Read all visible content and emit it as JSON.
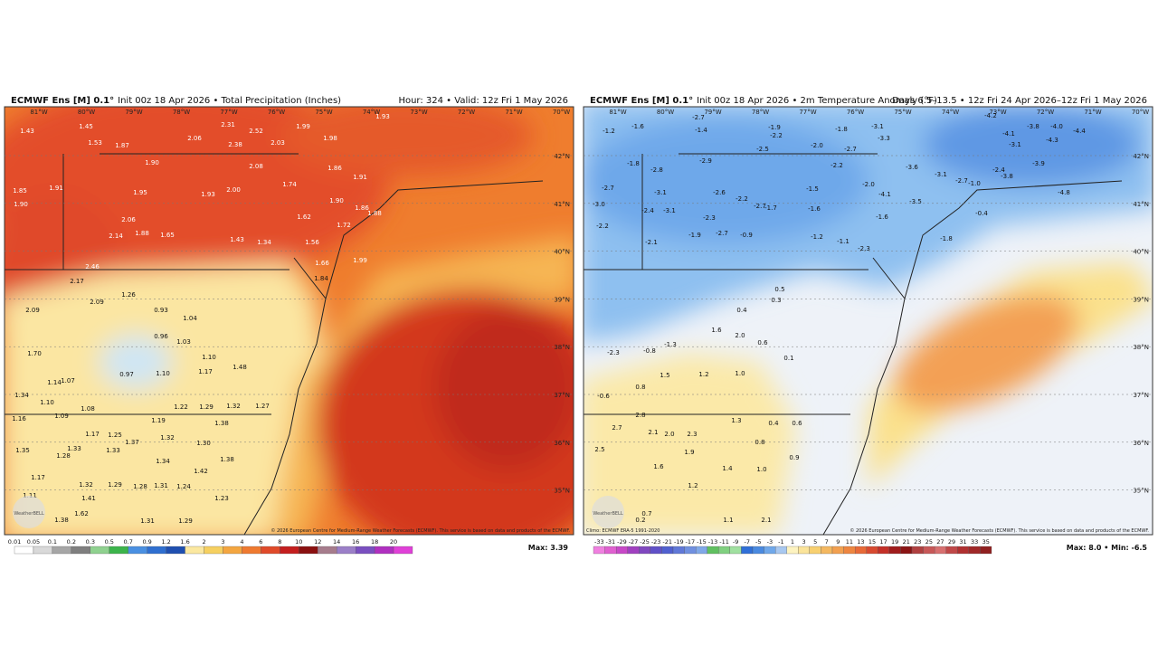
{
  "panels": [
    {
      "title_bold": "ECMWF Ens [M] 0.1°",
      "title_rest": "Init 00z 18 Apr 2026 • Total Precipitation (Inches)",
      "right": "Hour: 324 • Valid: 12z Fri 1 May 2026",
      "lon_labels": [
        "81°W",
        "80°W",
        "79°W",
        "78°W",
        "77°W",
        "76°W",
        "75°W",
        "74°W",
        "73°W",
        "72°W",
        "71°W",
        "70°W"
      ],
      "lat_labels": [
        "42°N",
        "41°N",
        "40°N",
        "39°N",
        "38°N",
        "37°N",
        "36°N",
        "35°N"
      ],
      "credit": "© 2026 European Centre for Medium-Range Weather Forecasts (ECMWF). This service is based on data and products of the ECMWF.",
      "logo": "WeatherBELL",
      "climo": null,
      "colorbar": {
        "ticks": [
          "0.01",
          "0.05",
          "0.1",
          "0.2",
          "0.3",
          "0.5",
          "0.7",
          "0.9",
          "1.2",
          "1.6",
          "2",
          "3",
          "4",
          "6",
          "8",
          "10",
          "12",
          "14",
          "16",
          "18",
          "20"
        ],
        "colors": [
          "#ffffff",
          "#d9d9d9",
          "#a6a6a6",
          "#7f7f7f",
          "#8fd18f",
          "#3cb44b",
          "#4a90e2",
          "#2f6fd0",
          "#1f4fb0",
          "#fbe8a0",
          "#f6d060",
          "#f4a640",
          "#ef7a30",
          "#e04a2a",
          "#c41e1e",
          "#8a1010",
          "#a67c8c",
          "#9b7fc8",
          "#7a4fc0",
          "#b030c0",
          "#e040d8"
        ]
      },
      "max": "Max: 3.39",
      "values": [
        "1.43",
        "1.45",
        "1.53",
        "1.87",
        "1.90",
        "2.06",
        "2.31",
        "2.52",
        "2.38",
        "2.03",
        "1.99",
        "1.98",
        "2.08",
        "1.86",
        "1.91",
        "1.74",
        "2.00",
        "1.93",
        "1.95",
        "2.06",
        "2.14",
        "1.88",
        "1.65",
        "1.43",
        "1.34",
        "1.56",
        "1.72",
        "1.62",
        "1.85",
        "1.90",
        "1.91",
        "2.46",
        "2.17",
        "2.09",
        "2.09",
        "1.26",
        "0.93",
        "1.04",
        "0.96",
        "1.03",
        "0.97",
        "1.10",
        "1.17",
        "1.10",
        "1.48",
        "1.70",
        "1.14",
        "1.07",
        "1.34",
        "1.10",
        "1.08",
        "1.16",
        "1.09",
        "1.22",
        "1.29",
        "1.32",
        "1.27",
        "1.38",
        "1.19",
        "1.32",
        "1.17",
        "1.25",
        "1.37",
        "1.33",
        "1.28",
        "1.35",
        "1.33",
        "1.34",
        "1.30",
        "1.42",
        "1.38",
        "1.32",
        "1.29",
        "1.28",
        "1.31",
        "1.24",
        "1.23",
        "1.31",
        "1.29",
        "1.17",
        "1.11",
        "1.41",
        "1.38",
        "1.62",
        "1.66",
        "1.84",
        "1.99",
        "1.90",
        "1.86",
        "1.88",
        "1.93"
      ]
    },
    {
      "title_bold": "ECMWF Ens [M] 0.1°",
      "title_rest": "Init 00z 18 Apr 2026 • 2m Temperature Anomaly (°F)",
      "right": "Days 6.5–13.5 • 12z Fri 24 Apr 2026–12z Fri 1 May 2026",
      "lon_labels": [
        "81°W",
        "80°W",
        "79°W",
        "78°W",
        "77°W",
        "76°W",
        "75°W",
        "74°W",
        "73°W",
        "72°W",
        "71°W",
        "70°W"
      ],
      "lat_labels": [
        "42°N",
        "41°N",
        "40°N",
        "39°N",
        "38°N",
        "37°N",
        "36°N",
        "35°N"
      ],
      "credit": "© 2026 European Centre for Medium-Range Weather Forecasts (ECMWF). This service is based on data and products of the ECMWF.",
      "logo": "WeatherBELL",
      "climo": "Climo: ECMWF ERA-5 1991-2020",
      "colorbar": {
        "ticks": [
          "-33",
          "-31",
          "-29",
          "-27",
          "-25",
          "-23",
          "-21",
          "-19",
          "-17",
          "-15",
          "-13",
          "-11",
          "-9",
          "-7",
          "-5",
          "-3",
          "-1",
          "1",
          "3",
          "5",
          "7",
          "9",
          "11",
          "13",
          "15",
          "17",
          "19",
          "21",
          "23",
          "25",
          "27",
          "29",
          "31",
          "33",
          "35"
        ],
        "colors": [
          "#f080e0",
          "#e060d0",
          "#c848c8",
          "#a040c0",
          "#8048c0",
          "#6050c8",
          "#5060d0",
          "#6078d8",
          "#7090e0",
          "#80a8e8",
          "#60c060",
          "#80d080",
          "#a0e0a0",
          "#3070d8",
          "#4a8ae0",
          "#70a8ea",
          "#a8c8f0",
          "#fdf3c0",
          "#fbe49a",
          "#f8d070",
          "#f4b860",
          "#f2a050",
          "#ee8640",
          "#e86a38",
          "#d84a30",
          "#c43028",
          "#a01c1c",
          "#8a1414",
          "#b04040",
          "#c85858",
          "#d87070",
          "#c04848",
          "#b03030",
          "#a02828",
          "#902020"
        ]
      },
      "max": "Max: 8.0 • Min: -6.5",
      "values": [
        "-1.2",
        "-1.6",
        "-2.7",
        "-1.4",
        "-1.9",
        "-2.2",
        "-1.8",
        "-3.1",
        "-3.3",
        "-2.0",
        "-2.7",
        "-2.5",
        "-1.8",
        "-2.8",
        "-2.9",
        "-2.2",
        "-3.6",
        "-3.1",
        "-2.7",
        "-2.7",
        "-3.1",
        "-2.6",
        "-2.2",
        "-2.0",
        "-1.5",
        "-4.1",
        "-3.5",
        "-3.0",
        "-2.4",
        "-3.1",
        "-2.7",
        "-1.7",
        "-1.6",
        "-1.6",
        "-2.2",
        "-2.3",
        "-2.1",
        "-1.9",
        "-2.7",
        "-0.9",
        "-1.2",
        "-1.1",
        "-2.3",
        "-1.8",
        "-4.2",
        "-3.8",
        "-4.0",
        "-4.4",
        "-4.1",
        "-3.1",
        "-4.3",
        "-3.9",
        "-2.4",
        "-3.8",
        "-1.0",
        "-0.4",
        "-4.8",
        "0.5",
        "0.3",
        "0.4",
        "1.6",
        "2.0",
        "0.6",
        "-1.3",
        "-0.8",
        "-2.3",
        "1.0",
        "0.1",
        "1.5",
        "1.2",
        "0.8",
        "-0.6",
        "2.8",
        "2.7",
        "2.1",
        "2.0",
        "2.3",
        "1.3",
        "0.4",
        "0.8",
        "2.5",
        "1.9",
        "1.6",
        "1.4",
        "1.0",
        "0.9",
        "0.6",
        "1.2",
        "0.7",
        "0.2",
        "1.1",
        "2.1"
      ]
    }
  ]
}
